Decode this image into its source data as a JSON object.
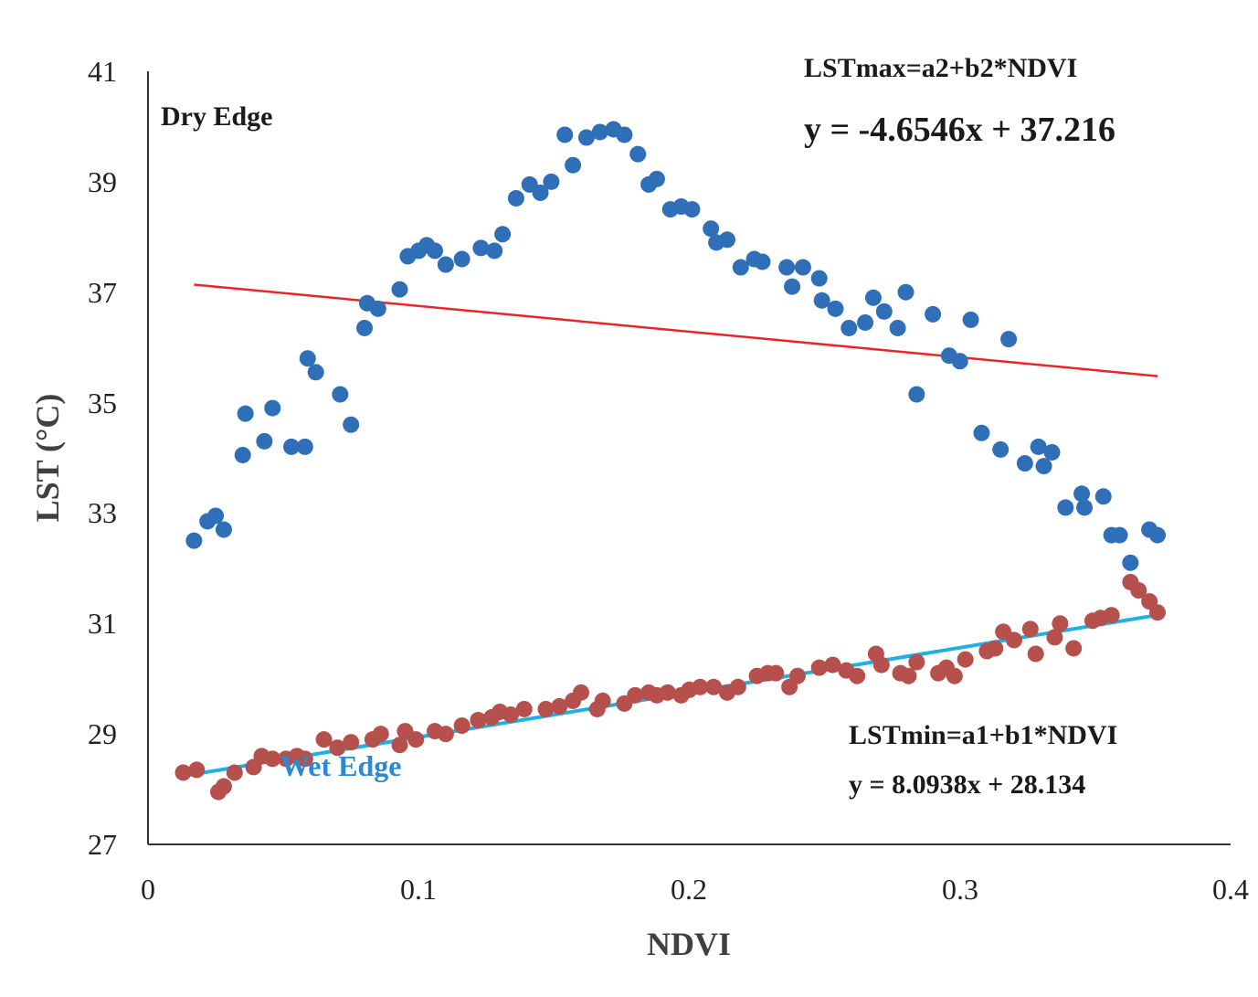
{
  "chart_data": {
    "type": "scatter",
    "title": "",
    "xlabel": "NDVI",
    "ylabel": "LST (°C)",
    "xlim": [
      0,
      0.4
    ],
    "ylim": [
      27,
      41
    ],
    "x_ticks": [
      "0",
      "0.1",
      "0.2",
      "0.3",
      "0.4"
    ],
    "y_ticks": [
      "27",
      "29",
      "31",
      "33",
      "35",
      "37",
      "39",
      "41"
    ],
    "grid": false,
    "colors": {
      "dry": "#2e6fb7",
      "wet": "#b5504c",
      "dry_fit": "#e8262a",
      "wet_fit": "#1fb0e6",
      "axis": "#333333"
    },
    "series": [
      {
        "name": "Dry Edge",
        "points": [
          [
            0.017,
            32.5
          ],
          [
            0.022,
            32.85
          ],
          [
            0.025,
            32.95
          ],
          [
            0.028,
            32.7
          ],
          [
            0.035,
            34.05
          ],
          [
            0.036,
            34.8
          ],
          [
            0.043,
            34.3
          ],
          [
            0.046,
            34.9
          ],
          [
            0.053,
            34.2
          ],
          [
            0.058,
            34.2
          ],
          [
            0.059,
            35.8
          ],
          [
            0.062,
            35.55
          ],
          [
            0.071,
            35.15
          ],
          [
            0.075,
            34.6
          ],
          [
            0.08,
            36.35
          ],
          [
            0.081,
            36.8
          ],
          [
            0.085,
            36.7
          ],
          [
            0.093,
            37.05
          ],
          [
            0.096,
            37.65
          ],
          [
            0.1,
            37.75
          ],
          [
            0.103,
            37.85
          ],
          [
            0.106,
            37.75
          ],
          [
            0.11,
            37.5
          ],
          [
            0.116,
            37.6
          ],
          [
            0.123,
            37.8
          ],
          [
            0.128,
            37.75
          ],
          [
            0.131,
            38.05
          ],
          [
            0.136,
            38.7
          ],
          [
            0.141,
            38.95
          ],
          [
            0.145,
            38.8
          ],
          [
            0.149,
            39.0
          ],
          [
            0.154,
            39.85
          ],
          [
            0.157,
            39.3
          ],
          [
            0.162,
            39.8
          ],
          [
            0.167,
            39.9
          ],
          [
            0.172,
            39.95
          ],
          [
            0.176,
            39.85
          ],
          [
            0.181,
            39.5
          ],
          [
            0.185,
            38.95
          ],
          [
            0.188,
            39.05
          ],
          [
            0.193,
            38.5
          ],
          [
            0.197,
            38.55
          ],
          [
            0.201,
            38.5
          ],
          [
            0.208,
            38.15
          ],
          [
            0.21,
            37.9
          ],
          [
            0.214,
            37.95
          ],
          [
            0.219,
            37.45
          ],
          [
            0.224,
            37.6
          ],
          [
            0.227,
            37.55
          ],
          [
            0.236,
            37.45
          ],
          [
            0.238,
            37.1
          ],
          [
            0.242,
            37.45
          ],
          [
            0.248,
            37.25
          ],
          [
            0.249,
            36.85
          ],
          [
            0.254,
            36.7
          ],
          [
            0.259,
            36.35
          ],
          [
            0.265,
            36.45
          ],
          [
            0.268,
            36.9
          ],
          [
            0.272,
            36.65
          ],
          [
            0.277,
            36.35
          ],
          [
            0.28,
            37.0
          ],
          [
            0.284,
            35.15
          ],
          [
            0.29,
            36.6
          ],
          [
            0.296,
            35.85
          ],
          [
            0.3,
            35.75
          ],
          [
            0.304,
            36.5
          ],
          [
            0.308,
            34.45
          ],
          [
            0.315,
            34.15
          ],
          [
            0.318,
            36.15
          ],
          [
            0.324,
            33.9
          ],
          [
            0.329,
            34.2
          ],
          [
            0.331,
            33.85
          ],
          [
            0.334,
            34.1
          ],
          [
            0.339,
            33.1
          ],
          [
            0.345,
            33.35
          ],
          [
            0.346,
            33.1
          ],
          [
            0.353,
            33.3
          ],
          [
            0.356,
            32.6
          ],
          [
            0.359,
            32.6
          ],
          [
            0.363,
            32.1
          ],
          [
            0.37,
            32.7
          ],
          [
            0.373,
            32.6
          ]
        ]
      },
      {
        "name": "Wet Edge",
        "points": [
          [
            0.013,
            28.3
          ],
          [
            0.018,
            28.35
          ],
          [
            0.026,
            27.95
          ],
          [
            0.028,
            28.05
          ],
          [
            0.032,
            28.3
          ],
          [
            0.039,
            28.4
          ],
          [
            0.042,
            28.6
          ],
          [
            0.046,
            28.55
          ],
          [
            0.051,
            28.55
          ],
          [
            0.055,
            28.6
          ],
          [
            0.058,
            28.55
          ],
          [
            0.065,
            28.9
          ],
          [
            0.07,
            28.75
          ],
          [
            0.075,
            28.85
          ],
          [
            0.083,
            28.9
          ],
          [
            0.086,
            29.0
          ],
          [
            0.093,
            28.8
          ],
          [
            0.095,
            29.05
          ],
          [
            0.099,
            28.9
          ],
          [
            0.106,
            29.05
          ],
          [
            0.11,
            29.0
          ],
          [
            0.116,
            29.15
          ],
          [
            0.122,
            29.25
          ],
          [
            0.127,
            29.3
          ],
          [
            0.13,
            29.4
          ],
          [
            0.134,
            29.35
          ],
          [
            0.139,
            29.45
          ],
          [
            0.147,
            29.45
          ],
          [
            0.152,
            29.5
          ],
          [
            0.157,
            29.6
          ],
          [
            0.16,
            29.75
          ],
          [
            0.166,
            29.45
          ],
          [
            0.168,
            29.6
          ],
          [
            0.176,
            29.55
          ],
          [
            0.18,
            29.7
          ],
          [
            0.185,
            29.75
          ],
          [
            0.188,
            29.7
          ],
          [
            0.192,
            29.75
          ],
          [
            0.197,
            29.7
          ],
          [
            0.2,
            29.8
          ],
          [
            0.204,
            29.85
          ],
          [
            0.209,
            29.85
          ],
          [
            0.214,
            29.75
          ],
          [
            0.218,
            29.85
          ],
          [
            0.225,
            30.05
          ],
          [
            0.229,
            30.1
          ],
          [
            0.232,
            30.1
          ],
          [
            0.237,
            29.85
          ],
          [
            0.24,
            30.05
          ],
          [
            0.248,
            30.2
          ],
          [
            0.253,
            30.25
          ],
          [
            0.258,
            30.15
          ],
          [
            0.262,
            30.05
          ],
          [
            0.269,
            30.45
          ],
          [
            0.271,
            30.25
          ],
          [
            0.278,
            30.1
          ],
          [
            0.281,
            30.05
          ],
          [
            0.284,
            30.3
          ],
          [
            0.292,
            30.1
          ],
          [
            0.295,
            30.2
          ],
          [
            0.298,
            30.05
          ],
          [
            0.302,
            30.35
          ],
          [
            0.31,
            30.5
          ],
          [
            0.313,
            30.55
          ],
          [
            0.316,
            30.85
          ],
          [
            0.32,
            30.7
          ],
          [
            0.326,
            30.9
          ],
          [
            0.328,
            30.45
          ],
          [
            0.335,
            30.75
          ],
          [
            0.337,
            31.0
          ],
          [
            0.342,
            30.55
          ],
          [
            0.349,
            31.05
          ],
          [
            0.352,
            31.1
          ],
          [
            0.356,
            31.15
          ],
          [
            0.363,
            31.75
          ],
          [
            0.366,
            31.6
          ],
          [
            0.37,
            31.4
          ],
          [
            0.373,
            31.2
          ]
        ]
      }
    ],
    "fits": [
      {
        "name": "dry",
        "slope": -4.6546,
        "intercept": 37.216,
        "x_range": [
          0.017,
          0.373
        ]
      },
      {
        "name": "wet",
        "slope": 8.0938,
        "intercept": 28.134,
        "x_range": [
          0.013,
          0.373
        ]
      }
    ],
    "annotations": {
      "dry_label": "Dry Edge",
      "wet_label": "Wet Edge",
      "dry_formula": "LSTmax=a2+b2*NDVI",
      "dry_equation": "y = -4.6546x + 37.216",
      "wet_formula": "LSTmin=a1+b1*NDVI",
      "wet_equation": "y = 8.0938x + 28.134"
    }
  }
}
